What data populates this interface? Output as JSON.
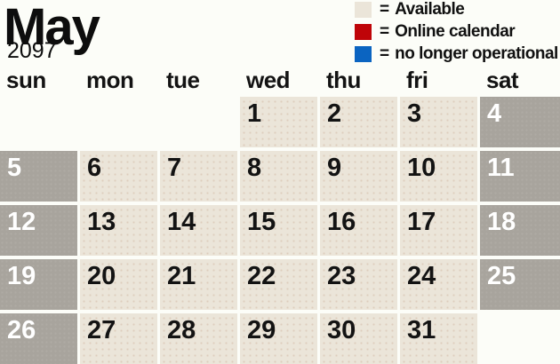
{
  "header": {
    "month": "May",
    "year": "2097"
  },
  "legend": {
    "eq": "=",
    "items": [
      {
        "name": "available",
        "color": "#ebe5d9",
        "label": "Available"
      },
      {
        "name": "online-calendar",
        "color": "#bf0408",
        "label": "Online calendar"
      },
      {
        "name": "no-longer-operational",
        "color": "#0b64c1",
        "label": "no longer operational"
      }
    ]
  },
  "weekdays": [
    "sun",
    "mon",
    "tue",
    "wed",
    "thu",
    "fri",
    "sat"
  ],
  "calendar": {
    "weeks": [
      [
        {
          "day": "",
          "type": "empty"
        },
        {
          "day": "",
          "type": "empty"
        },
        {
          "day": "",
          "type": "empty"
        },
        {
          "day": "1",
          "type": "available"
        },
        {
          "day": "2",
          "type": "available"
        },
        {
          "day": "3",
          "type": "available"
        },
        {
          "day": "4",
          "type": "weekend"
        }
      ],
      [
        {
          "day": "5",
          "type": "weekend"
        },
        {
          "day": "6",
          "type": "available"
        },
        {
          "day": "7",
          "type": "available"
        },
        {
          "day": "8",
          "type": "available"
        },
        {
          "day": "9",
          "type": "available"
        },
        {
          "day": "10",
          "type": "available"
        },
        {
          "day": "11",
          "type": "weekend"
        }
      ],
      [
        {
          "day": "12",
          "type": "weekend"
        },
        {
          "day": "13",
          "type": "available"
        },
        {
          "day": "14",
          "type": "available"
        },
        {
          "day": "15",
          "type": "available"
        },
        {
          "day": "16",
          "type": "available"
        },
        {
          "day": "17",
          "type": "available"
        },
        {
          "day": "18",
          "type": "weekend"
        }
      ],
      [
        {
          "day": "19",
          "type": "weekend"
        },
        {
          "day": "20",
          "type": "available"
        },
        {
          "day": "21",
          "type": "available"
        },
        {
          "day": "22",
          "type": "available"
        },
        {
          "day": "23",
          "type": "available"
        },
        {
          "day": "24",
          "type": "available"
        },
        {
          "day": "25",
          "type": "weekend"
        }
      ],
      [
        {
          "day": "26",
          "type": "weekend"
        },
        {
          "day": "27",
          "type": "available"
        },
        {
          "day": "28",
          "type": "available"
        },
        {
          "day": "29",
          "type": "available"
        },
        {
          "day": "30",
          "type": "available"
        },
        {
          "day": "31",
          "type": "available"
        },
        {
          "day": "",
          "type": "empty"
        }
      ]
    ]
  },
  "colors": {
    "background": "#fcfdf8",
    "available_cell": "#ebe5d9",
    "weekend_cell": "#a8a49d",
    "day_text": "#131313",
    "weekend_day_text": "#ffffff",
    "legend_red": "#bf0408",
    "legend_blue": "#0b64c1"
  }
}
